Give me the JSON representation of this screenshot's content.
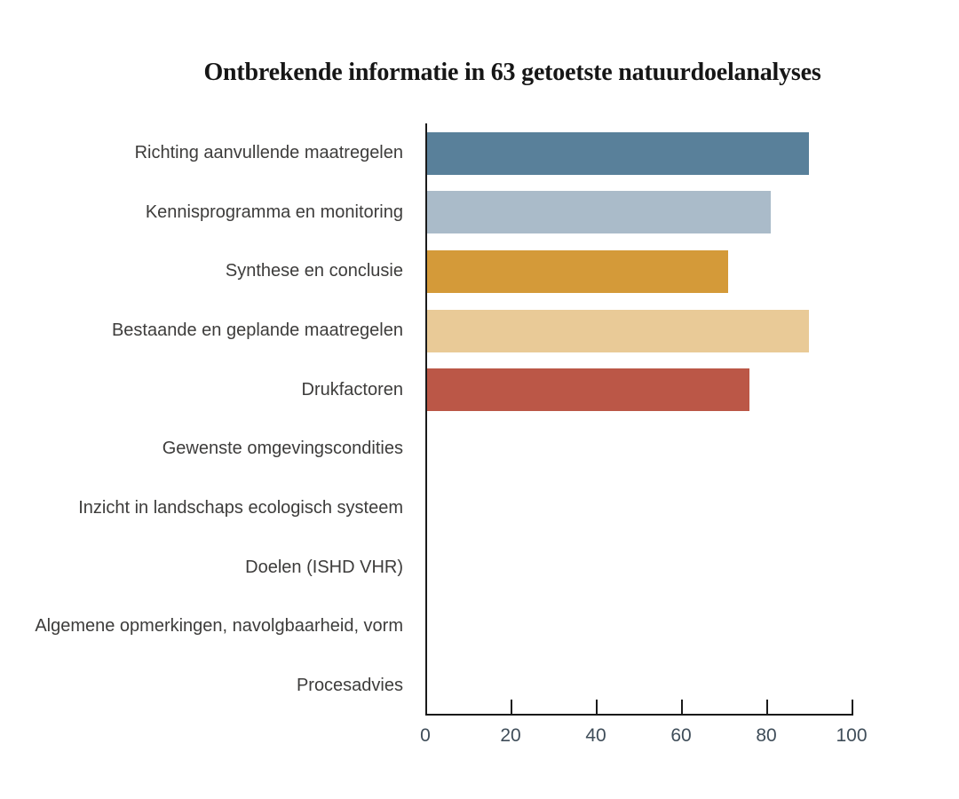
{
  "chart_data": {
    "type": "bar",
    "orientation": "horizontal",
    "title": "Ontbrekende informatie in 63 getoetste natuurdoelanalyses",
    "categories": [
      "Richting aanvullende maatregelen",
      "Kennisprogramma en monitoring",
      "Synthese en conclusie",
      "Bestaande en geplande maatregelen",
      "Drukfactoren",
      "Gewenste omgevingscondities",
      "Inzicht in landschaps ecologisch systeem",
      "Doelen (ISHD VHR)",
      "Algemene opmerkingen, navolgbaarheid, vorm",
      "Procesadvies"
    ],
    "values": [
      90,
      81,
      71,
      90,
      76,
      0,
      0,
      0,
      0,
      0
    ],
    "bar_colors": [
      "#59809A",
      "#AABBC9",
      "#D49A39",
      "#E9CA97",
      "#BB5747",
      null,
      null,
      null,
      null,
      null
    ],
    "x_ticks": [
      0,
      20,
      40,
      60,
      80,
      100
    ],
    "xlim": [
      0,
      100
    ],
    "xlabel": "",
    "ylabel": "",
    "grid": false,
    "legend": null
  },
  "colors": {
    "background": "#ffffff",
    "axis": "#1a1a1a",
    "category_text": "#3d3c3b",
    "tick_text": "#3f4d59",
    "title_text": "#161616"
  }
}
